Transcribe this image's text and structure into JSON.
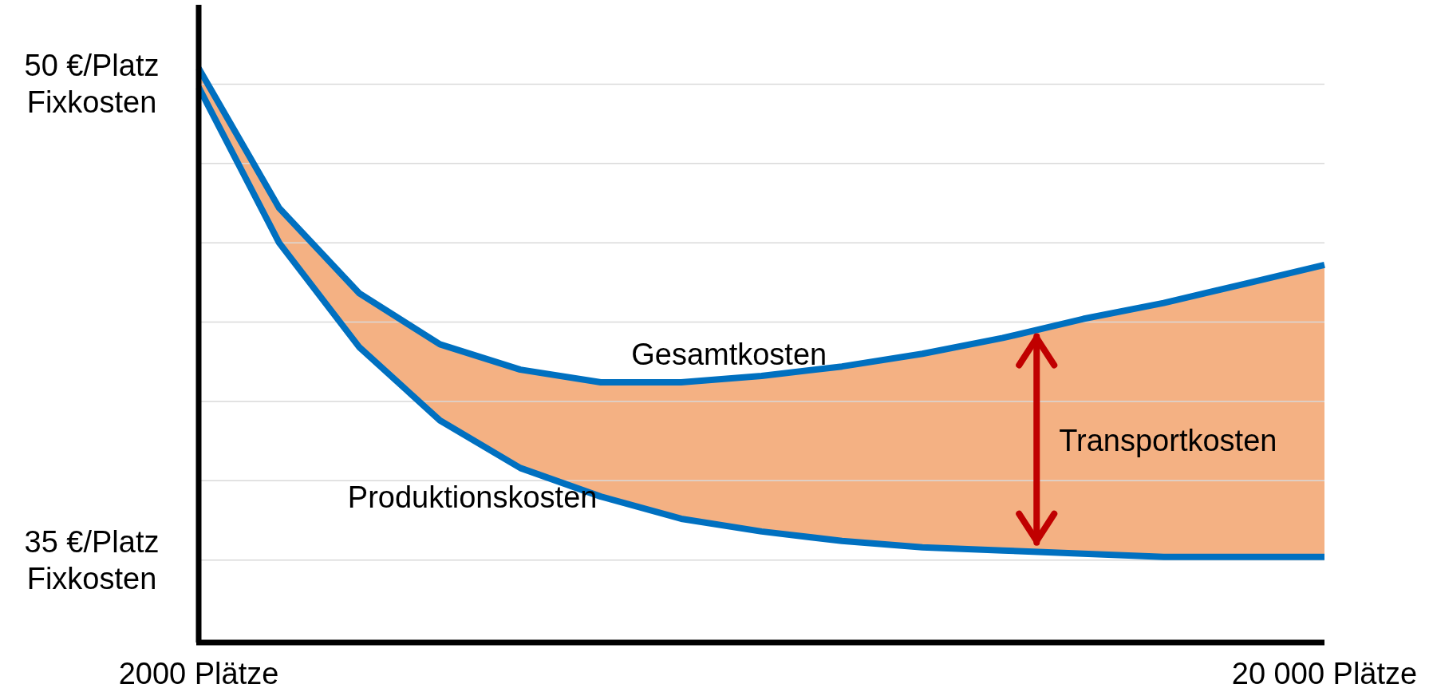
{
  "chart_data": {
    "type": "line",
    "categories": [
      "2000 Plätze",
      null,
      null,
      null,
      null,
      null,
      null,
      null,
      null,
      null,
      null,
      null,
      null,
      null,
      "20 000 Plätze"
    ],
    "series": [
      {
        "name": "Gesamtkosten",
        "color": "#0070c0",
        "values": [
          50.5,
          46.1,
          43.4,
          41.8,
          41.0,
          40.6,
          40.6,
          40.8,
          41.1,
          41.5,
          42.0,
          42.6,
          43.1,
          43.7,
          44.3
        ]
      },
      {
        "name": "Produktionskosten",
        "color": "#0070c0",
        "values": [
          49.9,
          45.0,
          41.7,
          39.4,
          37.9,
          37.0,
          36.3,
          35.9,
          35.6,
          35.4,
          35.3,
          35.2,
          35.1,
          35.1,
          35.1
        ]
      },
      {
        "type": "area",
        "color": "#f4b183",
        "values": [
          50.5,
          46.1,
          43.4,
          41.8,
          41.0,
          40.6,
          40.6,
          40.8,
          41.1,
          41.5,
          42.0,
          42.6,
          43.1,
          43.7,
          44.3
        ]
      }
    ],
    "annotations": [
      "Transportkosten"
    ],
    "ylim": [
      32.4,
      52.5
    ],
    "yticks": [
      {
        "value": 35,
        "label": "35 €/Platz\nFixkosten"
      },
      {
        "value": 37.5,
        "label": null
      },
      {
        "value": 40,
        "label": null
      },
      {
        "value": 42.5,
        "label": null
      },
      {
        "value": 45,
        "label": null
      },
      {
        "value": 47.5,
        "label": null
      },
      {
        "value": 50,
        "label": "50 €/Platz\nFixkosten"
      }
    ],
    "grid": "y",
    "legend": false,
    "marker": "none",
    "line_style": "solid"
  }
}
